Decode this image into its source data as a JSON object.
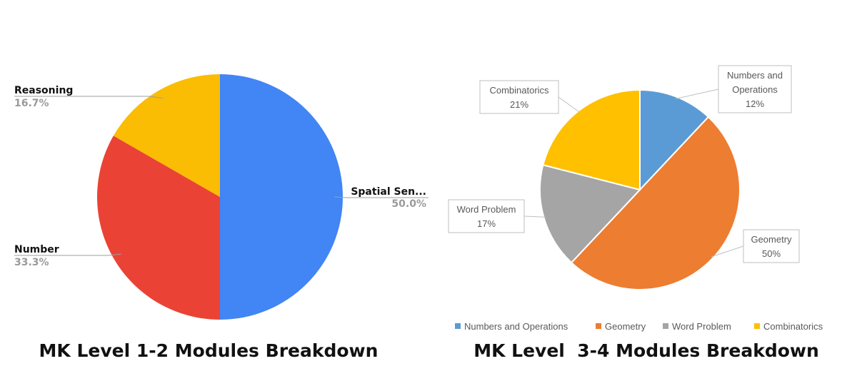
{
  "charts": {
    "left_title": "MK Level 1-2 Modules Breakdown",
    "right_title": "MK Level  3-4 Modules Breakdown"
  },
  "chart_data": [
    {
      "type": "pie",
      "title": "MK Level 1-2 Modules Breakdown",
      "labels": [
        "Spatial Sen...",
        "Number",
        "Reasoning"
      ],
      "values": [
        50.0,
        33.3,
        16.7
      ],
      "value_labels": [
        "50.0%",
        "33.3%",
        "16.7%"
      ],
      "colors": [
        "#4285f4",
        "#ea4335",
        "#fbbc04"
      ],
      "start": "12 o'clock, clockwise",
      "legend": "none"
    },
    {
      "type": "pie",
      "title": "MK Level  3-4 Modules Breakdown",
      "labels": [
        "Numbers and Operations",
        "Geometry",
        "Word Problem",
        "Combinatorics"
      ],
      "values": [
        12,
        50,
        17,
        21
      ],
      "value_labels": [
        "12%",
        "50%",
        "17%",
        "21%"
      ],
      "colors": [
        "#5b9bd5",
        "#ed7d31",
        "#a5a5a5",
        "#ffc000"
      ],
      "start": "12 o'clock, clockwise",
      "legend": "bottom"
    }
  ]
}
